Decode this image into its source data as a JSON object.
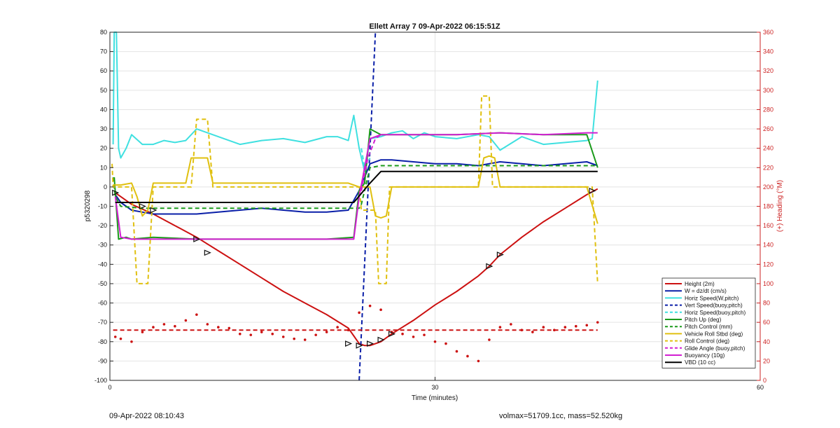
{
  "chart_data": {
    "type": "line",
    "title": "Ellett Array 7 09-Apr-2022 06:15:51Z",
    "xlabel": "Time (minutes)",
    "ylabel_left": "p5320298",
    "ylabel_right": "(+) Heading (°M)",
    "xlim": [
      0,
      60
    ],
    "ylim_left": [
      -100,
      80
    ],
    "ylim_right": [
      0,
      360
    ],
    "x_ticks": [
      0,
      30,
      60
    ],
    "y_ticks_left": [
      -100,
      -90,
      -80,
      -70,
      -60,
      -50,
      -40,
      -30,
      -20,
      -10,
      0,
      10,
      20,
      30,
      40,
      50,
      60,
      70,
      80
    ],
    "y_ticks_right": [
      0,
      20,
      40,
      60,
      80,
      100,
      120,
      140,
      160,
      180,
      200,
      220,
      240,
      260,
      280,
      300,
      320,
      340,
      360
    ],
    "grid": true,
    "legend_position": "bottom-right",
    "colors": {
      "red": "#cc1111",
      "blue": "#0a1fa8",
      "cyan": "#3fe0e0",
      "green": "#1a9a1a",
      "yellow": "#e0c010",
      "magenta": "#d21fd2",
      "black": "#000000",
      "right_axis": "#cc2222"
    },
    "series": [
      {
        "name": "Height (2m)",
        "color": "#cc1111",
        "dash": false,
        "axis": "left",
        "x": [
          0.5,
          2,
          4,
          6,
          8,
          10,
          12,
          14,
          16,
          18,
          20,
          22,
          22.5,
          23,
          23.5,
          24,
          25,
          26,
          28,
          30,
          32,
          34,
          35,
          36,
          38,
          40,
          42,
          44,
          45
        ],
        "y": [
          -3,
          -9,
          -14,
          -20,
          -26,
          -33,
          -40,
          -47,
          -54,
          -60,
          -66,
          -73,
          -77,
          -81,
          -82,
          -82,
          -80,
          -76,
          -69,
          -61,
          -54,
          -46,
          -41,
          -35,
          -26,
          -18,
          -11,
          -4,
          -1
        ]
      },
      {
        "name": "W = dz/dt (cm/s)",
        "color": "#0a1fa8",
        "dash": false,
        "axis": "left",
        "x": [
          0.5,
          1,
          2,
          3,
          4,
          6,
          8,
          10,
          12,
          14,
          16,
          18,
          20,
          22,
          23,
          24,
          25,
          26,
          28,
          30,
          32,
          34,
          36,
          38,
          40,
          42,
          44,
          45
        ],
        "y": [
          -4,
          -8,
          -12,
          -13,
          -14,
          -14,
          -14,
          -13,
          -12,
          -11,
          -12,
          -13,
          -13,
          -12,
          -2,
          12,
          14,
          14,
          13,
          12,
          12,
          11,
          13,
          12,
          11,
          12,
          13,
          11
        ]
      },
      {
        "name": "Horiz Speed(W,pitch)",
        "color": "#3fe0e0",
        "dash": false,
        "axis": "left",
        "x": [
          0.3,
          0.4,
          0.6,
          0.8,
          1,
          1.5,
          2,
          3,
          4,
          5,
          6,
          7,
          8,
          9,
          10,
          12,
          14,
          16,
          18,
          20,
          21,
          22,
          22.5,
          23,
          23.5,
          24,
          25,
          26,
          27,
          28,
          29,
          30,
          32,
          34,
          35,
          36,
          38,
          40,
          42,
          44,
          44.5,
          45
        ],
        "y": [
          22,
          80,
          80,
          20,
          15,
          20,
          27,
          22,
          22,
          24,
          23,
          24,
          30,
          28,
          26,
          22,
          24,
          25,
          23,
          26,
          26,
          24,
          37,
          20,
          8,
          25,
          26,
          28,
          29,
          25,
          28,
          26,
          25,
          27,
          26,
          19,
          26,
          22,
          23,
          24,
          25,
          55
        ]
      },
      {
        "name": "Vert Speed(buoy,pitch)",
        "color": "#0a1fa8",
        "dash": true,
        "axis": "left",
        "x": [
          23,
          24.5
        ],
        "y": [
          -100,
          80
        ]
      },
      {
        "name": "Horiz Speed(buoy,pitch)",
        "color": "#3fe0e0",
        "dash": true,
        "axis": "left",
        "x": [
          23.2,
          23.5,
          24
        ],
        "y": [
          20,
          10,
          15
        ]
      },
      {
        "name": "Pitch Control (mm)",
        "color": "#1a9a1a",
        "dash": true,
        "axis": "left",
        "x": [
          0.3,
          0.5,
          1,
          3,
          4,
          23,
          23.2,
          24,
          25,
          45
        ],
        "y": [
          5,
          -5,
          -10,
          -11,
          -11,
          -11,
          -9,
          10,
          11,
          11
        ]
      },
      {
        "name": "Pitch Up (deg)",
        "color": "#1a9a1a",
        "dash": false,
        "axis": "left",
        "x": [
          0.4,
          0.8,
          1.5,
          2,
          4,
          8,
          12,
          16,
          20,
          22.5,
          23,
          23.5,
          24,
          25,
          28,
          32,
          36,
          40,
          44,
          45
        ],
        "y": [
          5,
          -27,
          -26,
          -27,
          -26,
          -27,
          -27,
          -27,
          -27,
          -26,
          -2,
          2,
          30,
          27,
          27,
          27,
          28,
          27,
          27,
          10
        ]
      },
      {
        "name": "Vehicle Roll Stbd (deg)",
        "color": "#e0c010",
        "dash": false,
        "axis": "left",
        "x": [
          0.3,
          1,
          2,
          2.5,
          3,
          3.5,
          4,
          6,
          7,
          7.5,
          9,
          9.5,
          12,
          16,
          20,
          22,
          23,
          24,
          24.5,
          25,
          25.5,
          26,
          28,
          30,
          34,
          34.5,
          35,
          35.5,
          36,
          40,
          44,
          45
        ],
        "y": [
          1,
          1,
          2,
          -5,
          -15,
          -12,
          2,
          2,
          2,
          15,
          15,
          2,
          2,
          2,
          2,
          2,
          0,
          0,
          -15,
          -16,
          -15,
          0,
          0,
          0,
          0,
          15,
          16,
          15,
          0,
          0,
          0,
          -19
        ]
      },
      {
        "name": "Roll Control (deg)",
        "color": "#e0c010",
        "dash": true,
        "axis": "left",
        "x": [
          0.2,
          0.3,
          2,
          2.5,
          3.5,
          4,
          7.5,
          8,
          9,
          9.5,
          23,
          23.2,
          24.5,
          24.8,
          25.5,
          25.8,
          34,
          34.3,
          35,
          35.3,
          44.5,
          45
        ],
        "y": [
          12,
          0,
          0,
          -50,
          -50,
          0,
          0,
          35,
          35,
          0,
          0,
          -12,
          -12,
          -50,
          -50,
          0,
          0,
          47,
          47,
          0,
          0,
          -50
        ]
      },
      {
        "name": "Glide Angle (buoy,pitch)",
        "color": "#d21fd2",
        "dash": true,
        "axis": "left",
        "x": [
          23.2,
          23.8,
          24.5,
          25
        ],
        "y": [
          -2,
          15,
          25,
          27
        ]
      },
      {
        "name": "Buoyancy (10g)",
        "color": "#d21fd2",
        "dash": false,
        "axis": "left",
        "x": [
          0.5,
          1,
          2,
          4,
          8,
          12,
          16,
          20,
          22.5,
          23,
          24,
          25,
          28,
          32,
          36,
          40,
          44,
          45
        ],
        "y": [
          -5,
          -26,
          -27,
          -27,
          -27,
          -27,
          -27,
          -27,
          -27,
          -5,
          25,
          27,
          27,
          27,
          28,
          27,
          28,
          28
        ]
      },
      {
        "name": "VBD (10 cc)",
        "color": "#000000",
        "dash": false,
        "axis": "left",
        "x": [
          0.5,
          1,
          22.5,
          24,
          25,
          45
        ],
        "y": [
          -8,
          -8,
          -8,
          2,
          8,
          8
        ]
      },
      {
        "name": "Heading",
        "color": "#cc1111",
        "dash": false,
        "axis": "right",
        "style": "dots",
        "x": [
          0.5,
          1,
          2,
          3,
          4,
          5,
          6,
          7,
          8,
          9,
          10,
          11,
          12,
          13,
          14,
          15,
          16,
          17,
          18,
          19,
          20,
          21,
          22,
          23,
          24,
          25,
          26,
          27,
          28,
          29,
          30,
          31,
          32,
          33,
          34,
          35,
          36,
          37,
          38,
          39,
          40,
          41,
          42,
          43,
          44,
          45
        ],
        "y": [
          45,
          43,
          40,
          50,
          55,
          58,
          56,
          62,
          68,
          58,
          55,
          54,
          48,
          47,
          50,
          48,
          45,
          43,
          42,
          47,
          50,
          55,
          52,
          70,
          77,
          73,
          50,
          48,
          45,
          47,
          40,
          38,
          30,
          25,
          20,
          42,
          55,
          58,
          52,
          50,
          55,
          52,
          55,
          56,
          57,
          60
        ]
      },
      {
        "name": "Mean Heading",
        "color": "#cc1111",
        "dash": true,
        "axis": "right",
        "x": [
          0.3,
          45
        ],
        "y": [
          52,
          52
        ]
      }
    ],
    "legend": [
      {
        "label": "Height (2m)",
        "color": "#cc1111",
        "dash": false
      },
      {
        "label": "W = dz/dt (cm/s)",
        "color": "#0a1fa8",
        "dash": false
      },
      {
        "label": "Horiz Speed(W,pitch)",
        "color": "#3fe0e0",
        "dash": false
      },
      {
        "label": "Vert Speed(buoy,pitch)",
        "color": "#0a1fa8",
        "dash": true
      },
      {
        "label": "Horiz Speed(buoy,pitch)",
        "color": "#3fe0e0",
        "dash": true
      },
      {
        "label": "Pitch Up (deg)",
        "color": "#1a9a1a",
        "dash": false
      },
      {
        "label": "Pitch Control (mm)",
        "color": "#1a9a1a",
        "dash": true
      },
      {
        "label": "Vehicle Roll Stbd (deg)",
        "color": "#e0c010",
        "dash": false
      },
      {
        "label": "Roll Control (deg)",
        "color": "#e0c010",
        "dash": true
      },
      {
        "label": "Glide Angle (buoy,pitch)",
        "color": "#d21fd2",
        "dash": true
      },
      {
        "label": "Buoyancy (10g)",
        "color": "#d21fd2",
        "dash": false
      },
      {
        "label": "VBD (10 cc)",
        "color": "#000000",
        "dash": false
      }
    ],
    "markers": {
      "color": "#111111",
      "x": [
        0.5,
        3,
        4,
        8,
        9,
        22,
        23,
        24,
        25,
        26,
        35,
        36,
        44.5
      ],
      "y": [
        -3,
        -10,
        -12,
        -27,
        -34,
        -81,
        -82,
        -81,
        -79,
        -76,
        -41,
        -35,
        -2
      ]
    }
  },
  "footer": {
    "left": "09-Apr-2022 08:10:43",
    "right": "volmax=51709.1cc, mass=52.520kg"
  }
}
